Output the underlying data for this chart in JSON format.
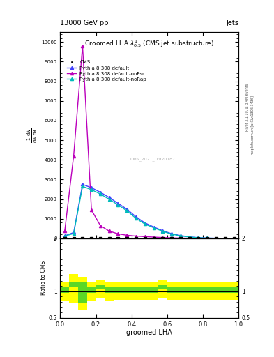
{
  "title_top": "13000 GeV pp",
  "title_right": "Jets",
  "plot_title": "Groomed LHA $\\lambda^{1}_{0.5}$ (CMS jet substructure)",
  "xlabel": "groomed LHA",
  "ratio_ylabel": "Ratio to CMS",
  "right_label": "Rivet 3.1.10, ≥ 3.4M events",
  "right_label2": "mcplots.cern.ch [arXiv:1306.3436]",
  "watermark": "CMS_2021_I1920187",
  "x_bins": [
    0.0,
    0.05,
    0.1,
    0.15,
    0.2,
    0.25,
    0.3,
    0.35,
    0.4,
    0.45,
    0.5,
    0.55,
    0.6,
    0.65,
    0.7,
    0.75,
    0.8,
    0.85,
    0.9,
    0.95,
    1.0
  ],
  "cms_y": [
    5,
    5,
    5,
    5,
    5,
    5,
    5,
    5,
    5,
    5,
    5,
    5,
    5,
    5,
    5,
    5,
    5,
    5,
    5,
    5
  ],
  "pythia_default_y": [
    130,
    300,
    2750,
    2580,
    2350,
    2080,
    1780,
    1480,
    1100,
    790,
    580,
    390,
    240,
    145,
    78,
    38,
    18,
    9,
    4,
    1.5
  ],
  "pythia_noFsr_y": [
    380,
    4200,
    9800,
    1450,
    650,
    370,
    230,
    160,
    118,
    90,
    65,
    45,
    27,
    18,
    10,
    6,
    2.5,
    1,
    0.4,
    0.1
  ],
  "pythia_noRap_y": [
    120,
    245,
    2650,
    2480,
    2260,
    1990,
    1700,
    1400,
    1020,
    730,
    540,
    360,
    215,
    130,
    68,
    33,
    15,
    7,
    3,
    1
  ],
  "cms_color": "#000000",
  "pythia_default_color": "#4040ff",
  "pythia_noFsr_color": "#bb00bb",
  "pythia_noRap_color": "#00bbbb",
  "ylim_main": [
    0,
    10500
  ],
  "ylim_ratio": [
    0.5,
    2.0
  ],
  "xlim": [
    0.0,
    1.0
  ],
  "yticks_main": [
    0,
    1000,
    2000,
    3000,
    4000,
    5000,
    6000,
    7000,
    8000,
    9000,
    10000
  ],
  "ratio_bins": [
    0.0,
    0.05,
    0.1,
    0.15,
    0.2,
    0.25,
    0.3,
    0.35,
    0.4,
    0.45,
    0.5,
    0.55,
    0.6,
    0.65,
    0.7,
    0.75,
    0.8,
    0.85,
    0.9,
    0.95,
    1.0
  ],
  "ratio_green_lo": [
    0.97,
    1.08,
    0.78,
    0.97,
    1.03,
    0.97,
    0.97,
    0.97,
    0.97,
    0.97,
    0.97,
    1.03,
    0.97,
    0.97,
    0.97,
    0.97,
    0.97,
    0.97,
    0.97,
    0.97
  ],
  "ratio_green_hi": [
    1.08,
    1.18,
    1.18,
    1.08,
    1.12,
    1.08,
    1.08,
    1.08,
    1.08,
    1.08,
    1.08,
    1.12,
    1.08,
    1.08,
    1.08,
    1.08,
    1.08,
    1.08,
    1.08,
    1.08
  ],
  "ratio_yellow_lo": [
    0.82,
    0.78,
    0.65,
    0.82,
    0.88,
    0.82,
    0.84,
    0.84,
    0.84,
    0.84,
    0.84,
    0.88,
    0.84,
    0.84,
    0.84,
    0.84,
    0.84,
    0.84,
    0.84,
    0.84
  ],
  "ratio_yellow_hi": [
    1.18,
    1.32,
    1.28,
    1.18,
    1.22,
    1.18,
    1.18,
    1.18,
    1.18,
    1.18,
    1.18,
    1.22,
    1.18,
    1.18,
    1.18,
    1.18,
    1.18,
    1.18,
    1.18,
    1.18
  ]
}
